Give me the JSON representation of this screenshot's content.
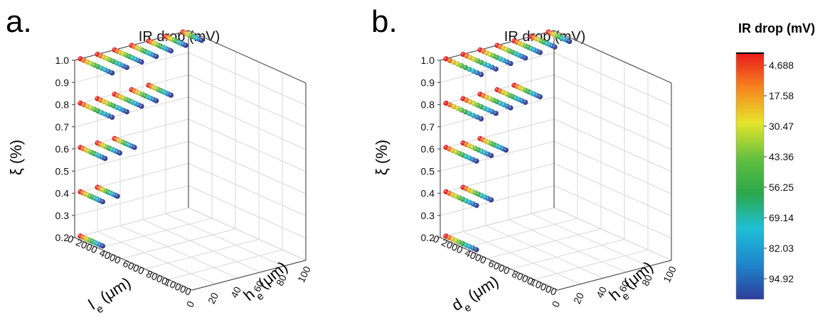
{
  "colorbar": {
    "title": "IR drop (mV)",
    "ticks": [
      "4.688",
      "17.58",
      "30.47",
      "43.36",
      "56.25",
      "69.14",
      "82.03",
      "94.92"
    ],
    "min": 4.688,
    "max": 94.92,
    "colors": [
      "#e8191c",
      "#f6841f",
      "#e6e52a",
      "#64c03f",
      "#2aa84a",
      "#1fbfd8",
      "#1f86cc",
      "#2d3d9b"
    ]
  },
  "chart_data": [
    {
      "type": "scatter",
      "panel": "a.",
      "title": "IR  drop (mV)",
      "xlabel": "l",
      "xlabel_sub": "e",
      "xlabel_unit": " (μm)",
      "ylabel": "h",
      "ylabel_sub": "e",
      "ylabel_unit": " (μm)",
      "zlabel": "ξ (%)",
      "xticks": [
        "0",
        "2000",
        "4000",
        "6000",
        "8000",
        "10000"
      ],
      "yticks": [
        "0",
        "20",
        "40",
        "60",
        "80",
        "100"
      ],
      "zticks": [
        "0.2",
        "0.3",
        "0.4",
        "0.5",
        "0.6",
        "0.7",
        "0.8",
        "0.9",
        "1.0"
      ],
      "xlim": [
        0,
        10000
      ],
      "ylim": [
        0,
        100
      ],
      "zlim": [
        0.2,
        1.0
      ],
      "layers": [
        {
          "z": 1.0,
          "rows": [
            {
              "y": 5,
              "x": [
                0,
                2700
              ]
            },
            {
              "y": 20,
              "x": [
                0,
                2500
              ]
            },
            {
              "y": 35,
              "x": [
                0,
                2300
              ]
            },
            {
              "y": 50,
              "x": [
                0,
                2100
              ]
            },
            {
              "y": 65,
              "x": [
                0,
                1900
              ]
            },
            {
              "y": 80,
              "x": [
                0,
                1700
              ]
            },
            {
              "y": 95,
              "x": [
                0,
                1600
              ]
            }
          ]
        },
        {
          "z": 0.8,
          "rows": [
            {
              "y": 5,
              "x": [
                0,
                2700
              ]
            },
            {
              "y": 20,
              "x": [
                0,
                2500
              ]
            },
            {
              "y": 35,
              "x": [
                0,
                2300
              ]
            },
            {
              "y": 50,
              "x": [
                0,
                2100
              ]
            },
            {
              "y": 65,
              "x": [
                0,
                1900
              ]
            }
          ]
        },
        {
          "z": 0.6,
          "rows": [
            {
              "y": 5,
              "x": [
                0,
                2100
              ]
            },
            {
              "y": 20,
              "x": [
                0,
                1900
              ]
            },
            {
              "y": 35,
              "x": [
                0,
                1700
              ]
            }
          ]
        },
        {
          "z": 0.4,
          "rows": [
            {
              "y": 5,
              "x": [
                0,
                1900
              ]
            },
            {
              "y": 20,
              "x": [
                0,
                1700
              ]
            }
          ]
        },
        {
          "z": 0.2,
          "rows": [
            {
              "y": 5,
              "x": [
                0,
                1900
              ]
            }
          ]
        }
      ]
    },
    {
      "type": "scatter",
      "panel": "b.",
      "title": "IR drop (mV)",
      "xlabel": "d",
      "xlabel_sub": "e",
      "xlabel_unit": " (μm)",
      "ylabel": "h",
      "ylabel_sub": "e",
      "ylabel_unit": " (μm)",
      "zlabel": "ξ (%)",
      "xticks": [
        "0",
        "2000",
        "4000",
        "6000",
        "8000",
        "10000"
      ],
      "yticks": [
        "0",
        "20",
        "40",
        "60",
        "80",
        "100"
      ],
      "zticks": [
        "0.2",
        "0.3",
        "0.4",
        "0.5",
        "0.6",
        "0.7",
        "0.8",
        "0.9",
        "1.0"
      ],
      "xlim": [
        0,
        10000
      ],
      "ylim": [
        0,
        100
      ],
      "zlim": [
        0.2,
        1.0
      ],
      "layers": [
        {
          "z": 1.0,
          "rows": [
            {
              "y": 5,
              "x": [
                0,
                3000
              ]
            },
            {
              "y": 20,
              "x": [
                0,
                2800
              ]
            },
            {
              "y": 35,
              "x": [
                0,
                2600
              ]
            },
            {
              "y": 50,
              "x": [
                0,
                2400
              ]
            },
            {
              "y": 65,
              "x": [
                0,
                2200
              ]
            },
            {
              "y": 80,
              "x": [
                0,
                2000
              ]
            },
            {
              "y": 95,
              "x": [
                0,
                1800
              ]
            }
          ]
        },
        {
          "z": 0.8,
          "rows": [
            {
              "y": 5,
              "x": [
                0,
                3000
              ]
            },
            {
              "y": 20,
              "x": [
                0,
                2800
              ]
            },
            {
              "y": 35,
              "x": [
                0,
                2600
              ]
            },
            {
              "y": 50,
              "x": [
                0,
                2400
              ]
            },
            {
              "y": 65,
              "x": [
                0,
                2200
              ]
            }
          ]
        },
        {
          "z": 0.6,
          "rows": [
            {
              "y": 5,
              "x": [
                0,
                2600
              ]
            },
            {
              "y": 20,
              "x": [
                0,
                2400
              ]
            },
            {
              "y": 35,
              "x": [
                0,
                2200
              ]
            }
          ]
        },
        {
          "z": 0.4,
          "rows": [
            {
              "y": 5,
              "x": [
                0,
                2600
              ]
            },
            {
              "y": 20,
              "x": [
                0,
                2400
              ]
            }
          ]
        },
        {
          "z": 0.2,
          "rows": [
            {
              "y": 5,
              "x": [
                0,
                2600
              ]
            }
          ]
        }
      ]
    }
  ]
}
